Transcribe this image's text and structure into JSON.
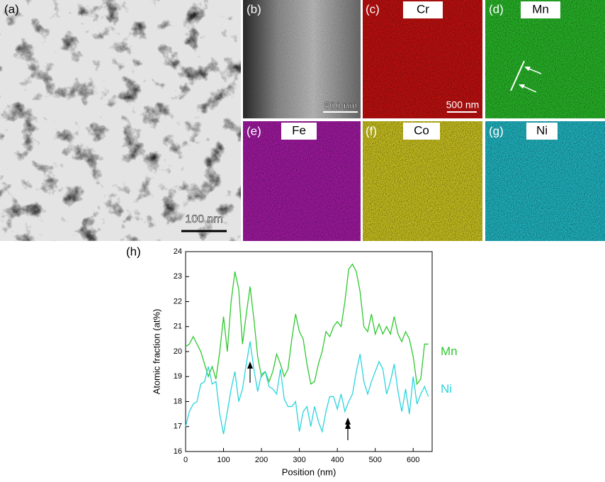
{
  "panels": [
    {
      "label": "(a)",
      "scale_bar": "100 nm"
    },
    {
      "label": "(b)",
      "scale_bar": "500 nm"
    },
    {
      "label": "(c)",
      "element": "Cr",
      "scale_bar": "500 nm"
    },
    {
      "label": "(d)",
      "element": "Mn"
    },
    {
      "label": "(e)",
      "element": "Fe"
    },
    {
      "label": "(f)",
      "element": "Co"
    },
    {
      "label": "(g)",
      "element": "Ni"
    }
  ],
  "chart_data": {
    "type": "line",
    "panel_label": "(h)",
    "x_label": "Position (nm)",
    "y_label": "Atomic fraction (at%)",
    "x": [
      0,
      10,
      20,
      30,
      40,
      50,
      60,
      70,
      80,
      90,
      100,
      110,
      120,
      130,
      140,
      150,
      160,
      170,
      180,
      190,
      200,
      210,
      220,
      230,
      240,
      250,
      260,
      270,
      280,
      290,
      300,
      310,
      320,
      330,
      340,
      350,
      360,
      370,
      380,
      390,
      400,
      410,
      420,
      430,
      440,
      450,
      460,
      470,
      480,
      490,
      500,
      510,
      520,
      530,
      540,
      550,
      560,
      570,
      580,
      590,
      600,
      610,
      620,
      630,
      640
    ],
    "series": [
      {
        "name": "Mn",
        "color": "#2fc82f",
        "values": [
          20.2,
          20.3,
          20.6,
          20.3,
          20.0,
          19.5,
          19.0,
          19.4,
          18.9,
          20.0,
          21.4,
          20.0,
          22.0,
          23.2,
          22.5,
          20.3,
          21.5,
          22.6,
          21.3,
          19.8,
          19.0,
          19.2,
          18.8,
          19.2,
          19.9,
          19.5,
          19.0,
          19.3,
          20.5,
          21.5,
          20.8,
          20.5,
          19.5,
          18.7,
          18.8,
          19.5,
          20.0,
          20.8,
          20.6,
          21.0,
          21.2,
          21.0,
          22.0,
          23.3,
          23.5,
          23.2,
          22.4,
          21.0,
          20.8,
          21.5,
          20.7,
          21.1,
          20.7,
          21.0,
          20.7,
          21.4,
          20.7,
          20.4,
          20.8,
          20.5,
          19.8,
          18.7,
          18.9,
          20.3,
          20.3
        ]
      },
      {
        "name": "Ni",
        "color": "#2ad4dc",
        "values": [
          17.0,
          17.6,
          17.9,
          18.0,
          18.7,
          18.8,
          19.4,
          18.7,
          18.8,
          17.5,
          16.7,
          17.6,
          18.5,
          19.2,
          18.0,
          18.5,
          19.5,
          20.4,
          19.3,
          18.4,
          19.1,
          19.2,
          18.6,
          18.5,
          18.3,
          19.3,
          18.1,
          17.8,
          17.8,
          18.0,
          16.8,
          17.6,
          17.8,
          17.0,
          17.8,
          17.2,
          16.8,
          17.6,
          18.2,
          18.2,
          17.7,
          18.3,
          17.6,
          18.0,
          18.3,
          19.2,
          19.9,
          18.8,
          18.3,
          18.8,
          19.2,
          19.6,
          19.3,
          18.3,
          18.8,
          19.5,
          18.4,
          17.6,
          18.5,
          17.5,
          19.0,
          17.9,
          18.3,
          18.6,
          18.2
        ]
      }
    ],
    "xlim": [
      0,
      650
    ],
    "xticks": [
      0,
      100,
      200,
      300,
      400,
      500,
      600
    ],
    "ylim": [
      16,
      24
    ],
    "yticks": [
      16,
      17,
      18,
      19,
      20,
      21,
      22,
      23,
      24
    ]
  }
}
